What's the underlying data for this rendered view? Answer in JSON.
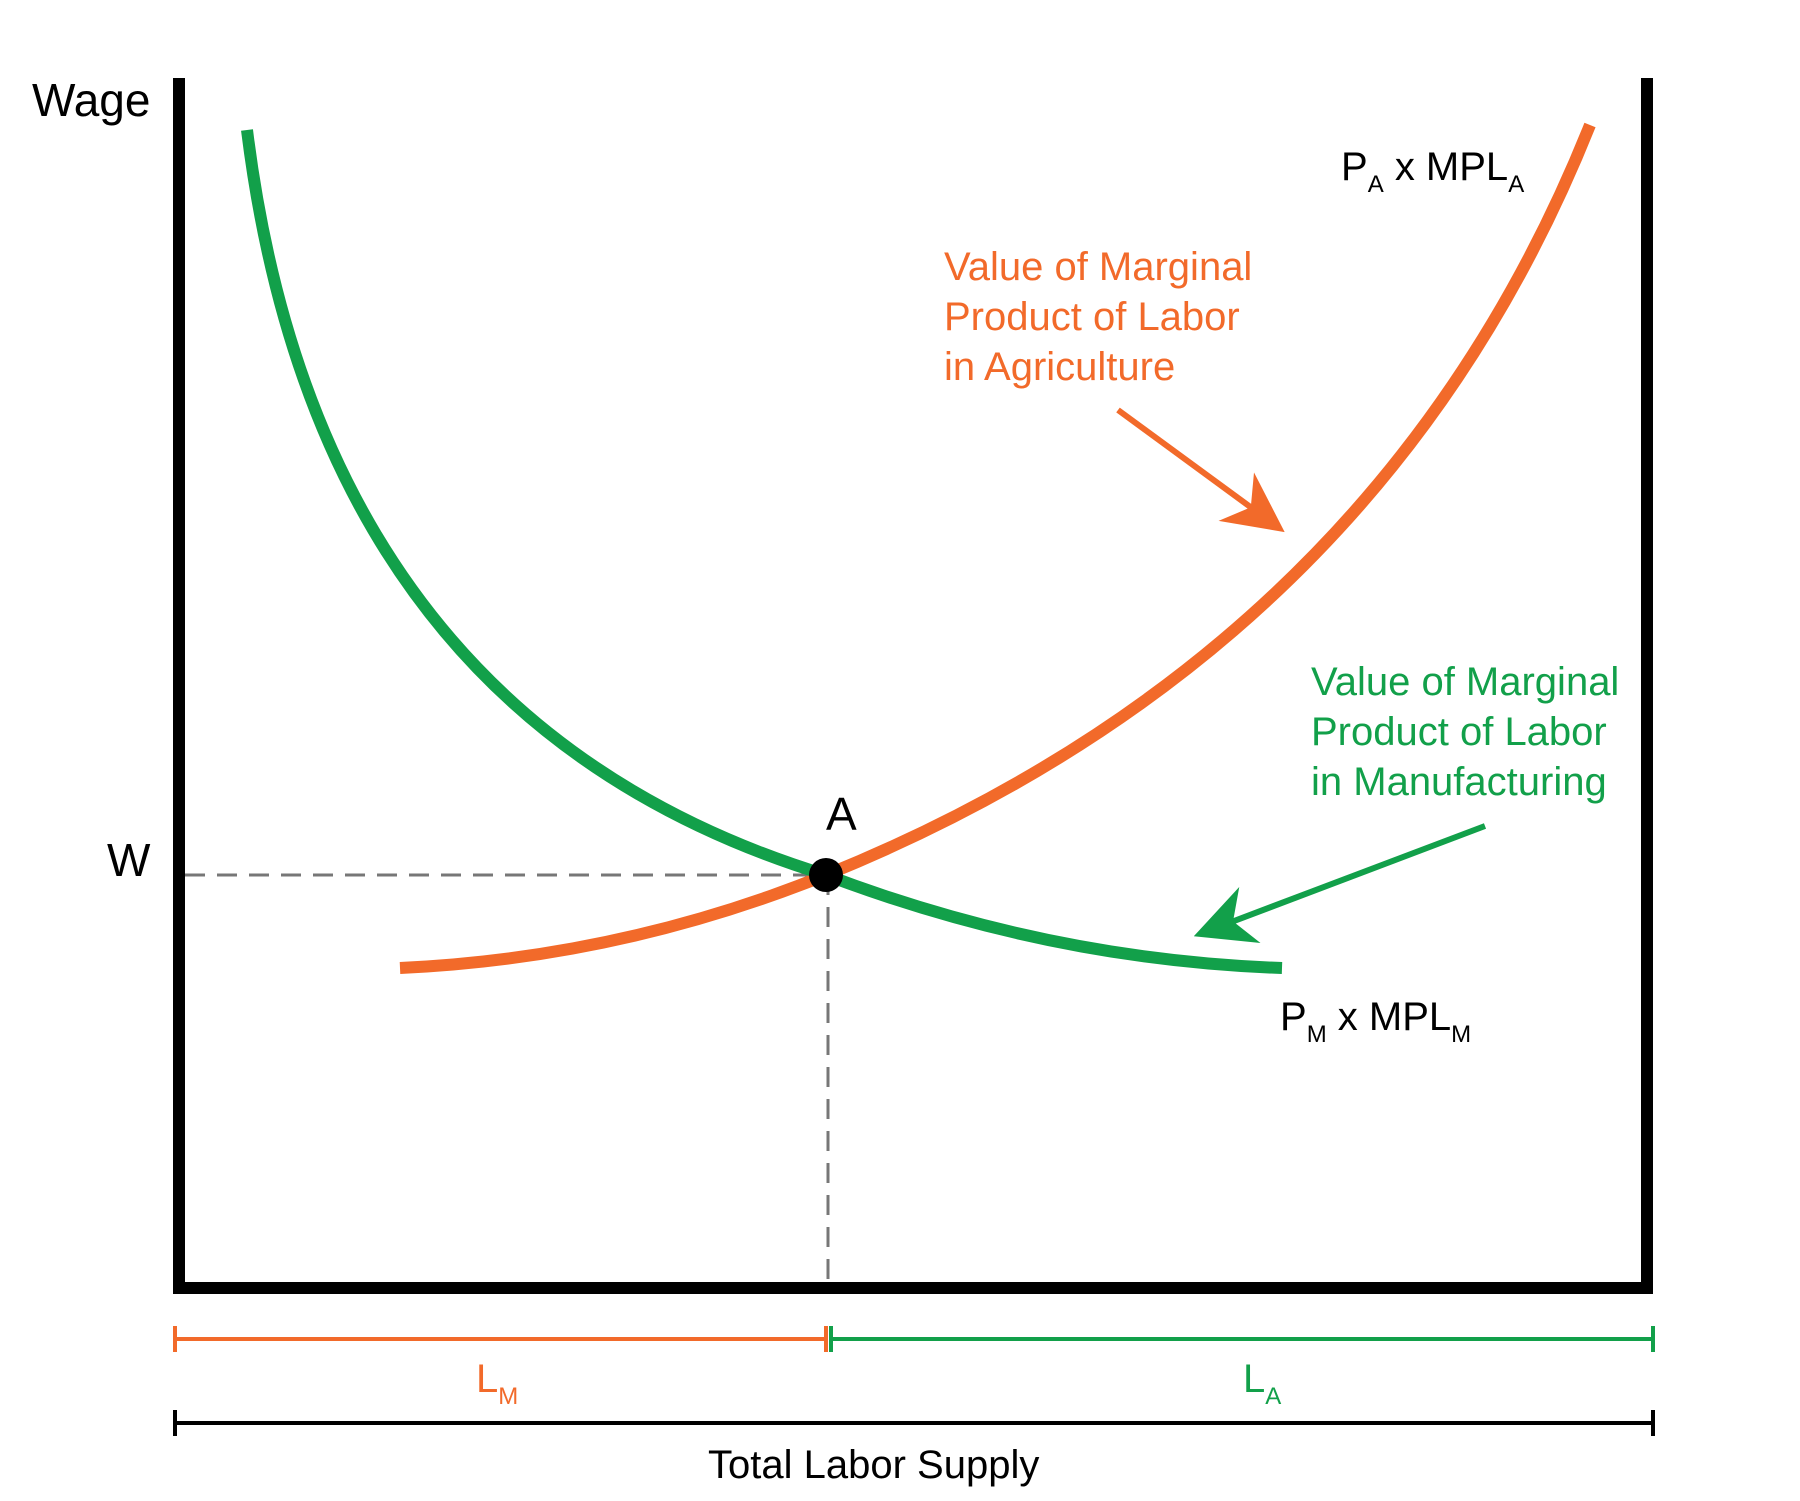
{
  "colors": {
    "orange": "#f26a2a",
    "green": "#12a04a",
    "axis": "#000000",
    "dash": "#777777"
  },
  "axes": {
    "y_label": "Wage",
    "wage_label": "W",
    "point_label": "A"
  },
  "curves": {
    "agriculture": {
      "label_top": {
        "base": "P",
        "sub1": "A",
        "mid": " x MPL",
        "sub2": "A"
      },
      "description": [
        "Value of Marginal",
        "Product of Labor",
        "in Agriculture"
      ]
    },
    "manufacturing": {
      "label_bottom": {
        "base": "P",
        "sub1": "M",
        "mid": " x MPL",
        "sub2": "M"
      },
      "description": [
        "Value of Marginal",
        "Product of Labor",
        "in Manufacturing"
      ]
    }
  },
  "labor": {
    "manufacturing": {
      "base": "L",
      "sub": "M"
    },
    "agriculture": {
      "base": "L",
      "sub": "A"
    },
    "total": "Total Labor Supply"
  }
}
